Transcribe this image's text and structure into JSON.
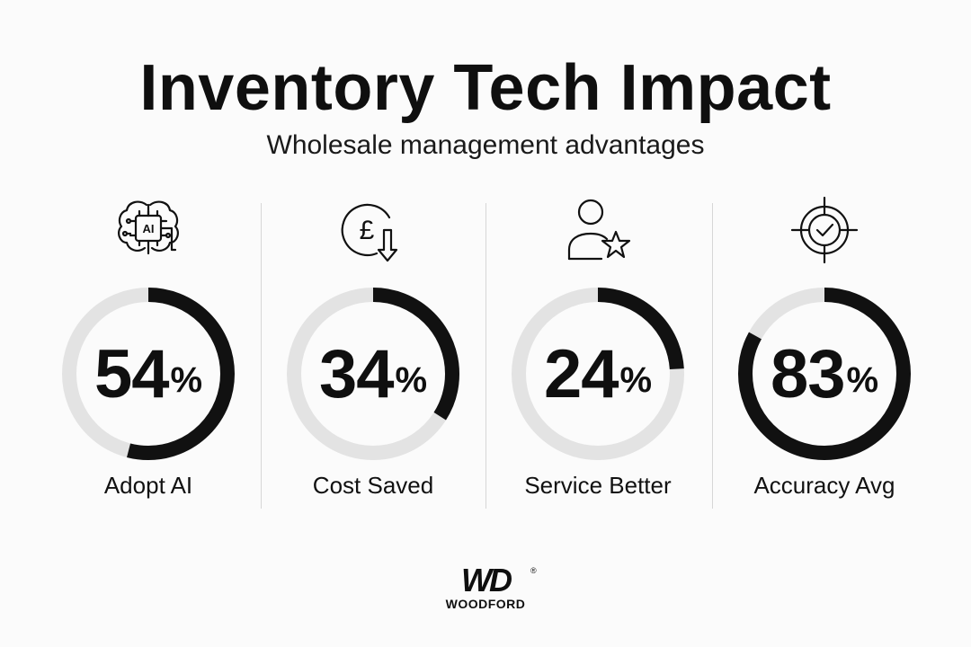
{
  "header": {
    "title": "Inventory Tech Impact",
    "subtitle": "Wholesale management advantages"
  },
  "chart_data": {
    "type": "donut",
    "items": [
      {
        "label": "Adopt AI",
        "value": 54,
        "icon": "ai-brain-icon",
        "icon_text": "AI"
      },
      {
        "label": "Cost Saved",
        "value": 34,
        "icon": "pound-down-arrow-icon",
        "icon_text": "£"
      },
      {
        "label": "Service Better",
        "value": 24,
        "icon": "user-star-icon"
      },
      {
        "label": "Accuracy Avg",
        "value": 83,
        "icon": "target-check-icon"
      }
    ],
    "unit": "%",
    "max": 100,
    "colors": {
      "fill": "#111111",
      "track": "#e3e3e3"
    }
  },
  "logo": {
    "mark": "WD",
    "registered": "®",
    "name": "WOODFORD"
  }
}
